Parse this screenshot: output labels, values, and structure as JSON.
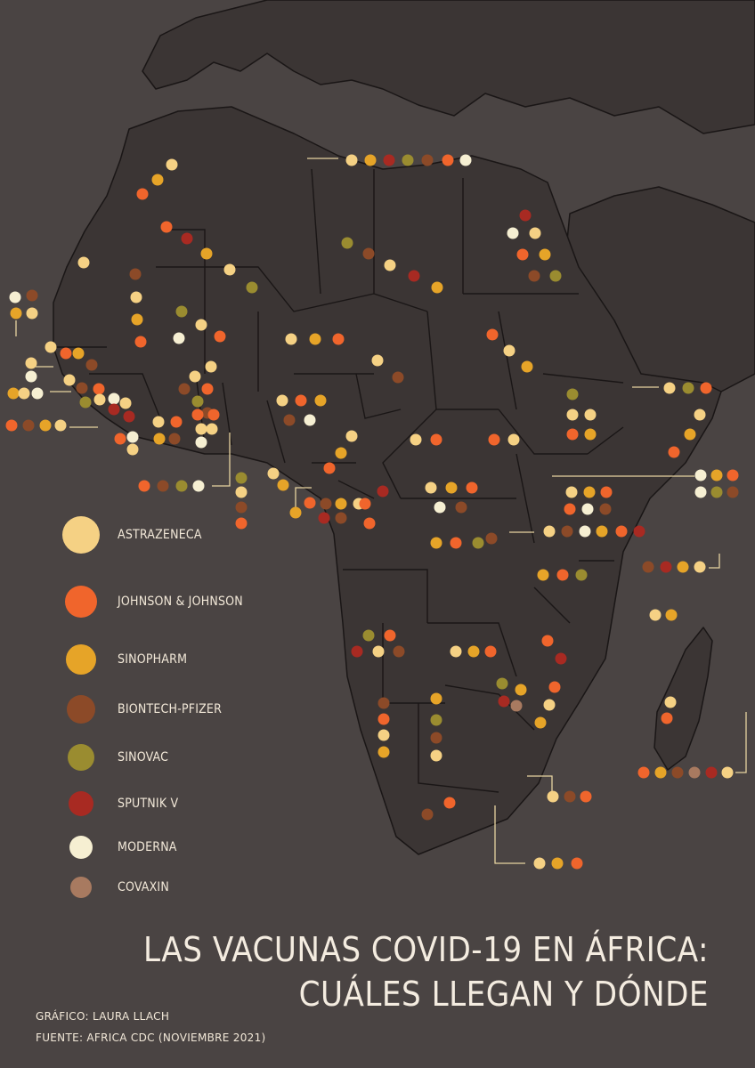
{
  "legend": {
    "items": [
      {
        "name": "ASTRAZENECA",
        "color": "#f5d184"
      },
      {
        "name": "JOHNSON & JOHNSON",
        "color": "#f0652c"
      },
      {
        "name": "SINOPHARM",
        "color": "#e6a428"
      },
      {
        "name": "BIONTECH-PFIZER",
        "color": "#8c4a28"
      },
      {
        "name": "SINOVAC",
        "color": "#9a8c30"
      },
      {
        "name": "SPUTNIK V",
        "color": "#a82a22"
      },
      {
        "name": "MODERNA",
        "color": "#f6efd2"
      },
      {
        "name": "COVAXIN",
        "color": "#a87a60"
      }
    ]
  },
  "title": {
    "line1": "LAS VACUNAS COVID-19 EN ÁFRICA:",
    "line2": "CUÁLES LLEGAN Y DÓNDE"
  },
  "credits": {
    "author": "GRÁFICO: LAURA LLACH",
    "source": "FUENTE: AFRICA CDC (NOVIEMBRE 2021)"
  },
  "colors": {
    "background": "#4a4443",
    "land": "#3b3534",
    "border": "#1a1616",
    "leader": "#e8d4a0"
  }
}
